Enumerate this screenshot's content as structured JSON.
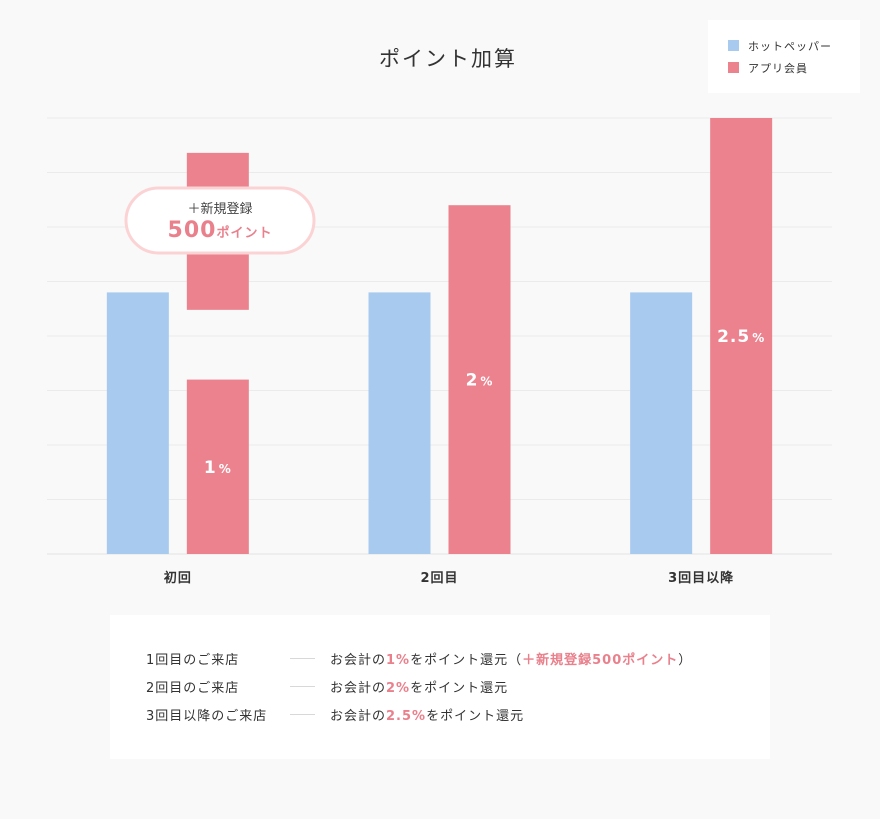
{
  "chart_data": {
    "type": "bar",
    "title": "ポイント加算",
    "categories": [
      "初回",
      "2回目",
      "3回目以降"
    ],
    "ylim": [
      0,
      2.5
    ],
    "grid": true,
    "legend_position": "top-right",
    "series": [
      {
        "name": "ホットペッパー",
        "color": "#a7caee",
        "values": [
          1.5,
          1.5,
          1.5
        ]
      },
      {
        "name": "アプリ会員",
        "color": "#ec828e",
        "values": [
          1,
          2,
          2.5
        ]
      }
    ],
    "bar_labels": [
      {
        "value": "1",
        "unit": "%"
      },
      {
        "value": "2",
        "unit": "%"
      },
      {
        "value": "2.5",
        "unit": "%"
      }
    ],
    "bonus_segment": {
      "category_index": 0,
      "from": 1.4,
      "to": 2.3
    },
    "annotation": {
      "line1": "＋新規登録",
      "line2_num": "500",
      "line2_unit": "ポイント"
    },
    "colors": {
      "accent": "#e9808c",
      "bubble_border": "#fbd3d4",
      "grid": "#ebebeb"
    }
  },
  "notes": [
    {
      "label": "1回目のご来店",
      "desc": [
        {
          "t": "お会計の"
        },
        {
          "t": "1%",
          "hl": true
        },
        {
          "t": "をポイント還元（"
        },
        {
          "t": "＋新規登録500ポイント",
          "hl": true
        },
        {
          "t": "）"
        }
      ]
    },
    {
      "label": "2回目のご来店",
      "desc": [
        {
          "t": "お会計の"
        },
        {
          "t": "2%",
          "hl": true
        },
        {
          "t": "をポイント還元"
        }
      ]
    },
    {
      "label": "3回目以降のご来店",
      "desc": [
        {
          "t": "お会計の"
        },
        {
          "t": "2.5%",
          "hl": true
        },
        {
          "t": "をポイント還元"
        }
      ]
    }
  ]
}
